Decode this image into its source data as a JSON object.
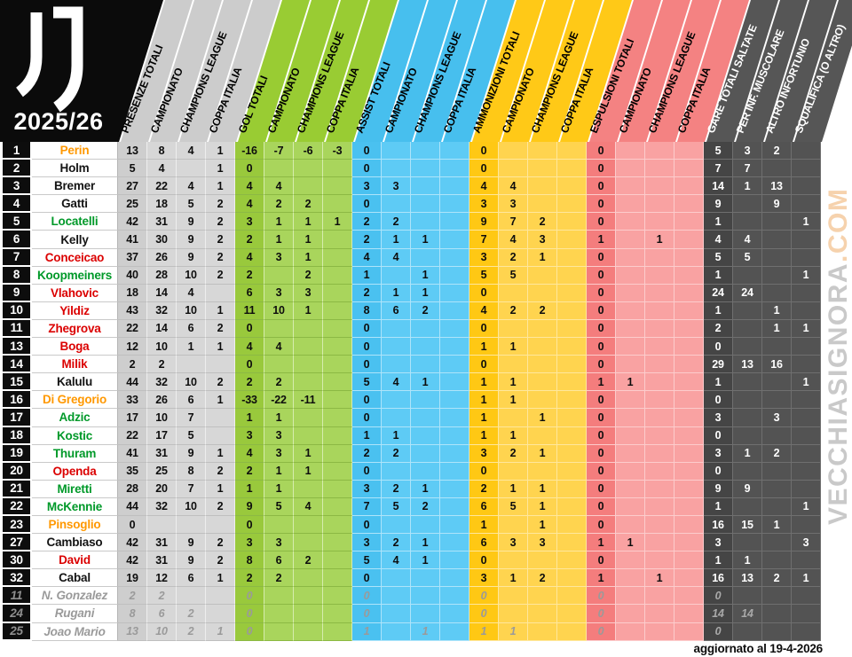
{
  "logo": {
    "season": "2025/26"
  },
  "header": {
    "groups": [
      {
        "id": "presenze",
        "color": "#cccccc",
        "text_color": "#000000",
        "labels": [
          "PRESENZE TOTALI",
          "CAMPIONATO",
          "CHAMPIONS LEAGUE",
          "COPPA ITALIA"
        ]
      },
      {
        "id": "gol",
        "color": "#99cc33",
        "text_color": "#000000",
        "labels": [
          "GOL TOTALI",
          "CAMPIONATO",
          "CHAMPIONS LEAGUE",
          "COPPA ITALIA"
        ]
      },
      {
        "id": "assist",
        "color": "#47bfee",
        "text_color": "#000000",
        "labels": [
          "ASSIST TOTALI",
          "CAMPIONATO",
          "CHAMPIONS LEAGUE",
          "COPPA ITALIA"
        ]
      },
      {
        "id": "ammonizioni",
        "color": "#ffc917",
        "text_color": "#000000",
        "labels": [
          "AMMONIZIONI TOTALI",
          "CAMPIONATO",
          "CHAMPIONS LEAGUE",
          "COPPA ITALIA"
        ]
      },
      {
        "id": "espulsioni",
        "color": "#f48282",
        "text_color": "#000000",
        "labels": [
          "ESPULSIONI TOTALI",
          "CAMPIONATO",
          "CHAMPIONS LEAGUE",
          "COPPA ITALIA"
        ]
      },
      {
        "id": "gare_saltate",
        "color": "#565656",
        "text_color": "#ffffff",
        "labels": [
          "GARE TOTALI SALTATE",
          "PER INF. MUSCOLARE",
          "ALTRO INFORTUNIO",
          "SQUALIFICA (O ALTRO)"
        ]
      }
    ]
  },
  "role_colors": {
    "goalkeeper": "#ff9800",
    "defender": "#141414",
    "midfielder": "#009929",
    "forward": "#db0000",
    "former": "#9a9a9a"
  },
  "rows": [
    {
      "rank": "1",
      "name": "Perin",
      "role": "goalkeeper",
      "values": [
        "13",
        "8",
        "4",
        "1",
        "-16",
        "-7",
        "-6",
        "-3",
        "0",
        "",
        "",
        "",
        "0",
        "",
        "",
        "",
        "0",
        "",
        "",
        "",
        "5",
        "3",
        "2",
        ""
      ]
    },
    {
      "rank": "2",
      "name": "Holm",
      "role": "defender",
      "values": [
        "5",
        "4",
        "",
        "1",
        "0",
        "",
        "",
        "",
        "0",
        "",
        "",
        "",
        "0",
        "",
        "",
        "",
        "0",
        "",
        "",
        "",
        "7",
        "7",
        "",
        ""
      ]
    },
    {
      "rank": "3",
      "name": "Bremer",
      "role": "defender",
      "values": [
        "27",
        "22",
        "4",
        "1",
        "4",
        "4",
        "",
        "",
        "3",
        "3",
        "",
        "",
        "4",
        "4",
        "",
        "",
        "0",
        "",
        "",
        "",
        "14",
        "1",
        "13",
        ""
      ]
    },
    {
      "rank": "4",
      "name": "Gatti",
      "role": "defender",
      "values": [
        "25",
        "18",
        "5",
        "2",
        "4",
        "2",
        "2",
        "",
        "0",
        "",
        "",
        "",
        "3",
        "3",
        "",
        "",
        "0",
        "",
        "",
        "",
        "9",
        "",
        "9",
        ""
      ]
    },
    {
      "rank": "5",
      "name": "Locatelli",
      "role": "midfielder",
      "values": [
        "42",
        "31",
        "9",
        "2",
        "3",
        "1",
        "1",
        "1",
        "2",
        "2",
        "",
        "",
        "9",
        "7",
        "2",
        "",
        "0",
        "",
        "",
        "",
        "1",
        "",
        "",
        "1"
      ]
    },
    {
      "rank": "6",
      "name": "Kelly",
      "role": "defender",
      "values": [
        "41",
        "30",
        "9",
        "2",
        "2",
        "1",
        "1",
        "",
        "2",
        "1",
        "1",
        "",
        "7",
        "4",
        "3",
        "",
        "1",
        "",
        "1",
        "",
        "4",
        "4",
        "",
        ""
      ]
    },
    {
      "rank": "7",
      "name": "Conceicao",
      "role": "forward",
      "values": [
        "37",
        "26",
        "9",
        "2",
        "4",
        "3",
        "1",
        "",
        "4",
        "4",
        "",
        "",
        "3",
        "2",
        "1",
        "",
        "0",
        "",
        "",
        "",
        "5",
        "5",
        "",
        ""
      ]
    },
    {
      "rank": "8",
      "name": "Koopmeiners",
      "role": "midfielder",
      "values": [
        "40",
        "28",
        "10",
        "2",
        "2",
        "",
        "2",
        "",
        "1",
        "",
        "1",
        "",
        "5",
        "5",
        "",
        "",
        "0",
        "",
        "",
        "",
        "1",
        "",
        "",
        "1"
      ]
    },
    {
      "rank": "9",
      "name": "Vlahovic",
      "role": "forward",
      "values": [
        "18",
        "14",
        "4",
        "",
        "6",
        "3",
        "3",
        "",
        "2",
        "1",
        "1",
        "",
        "0",
        "",
        "",
        "",
        "0",
        "",
        "",
        "",
        "24",
        "24",
        "",
        ""
      ]
    },
    {
      "rank": "10",
      "name": "Yildiz",
      "role": "forward",
      "values": [
        "43",
        "32",
        "10",
        "1",
        "11",
        "10",
        "1",
        "",
        "8",
        "6",
        "2",
        "",
        "4",
        "2",
        "2",
        "",
        "0",
        "",
        "",
        "",
        "1",
        "",
        "1",
        ""
      ]
    },
    {
      "rank": "11",
      "name": "Zhegrova",
      "role": "forward",
      "values": [
        "22",
        "14",
        "6",
        "2",
        "0",
        "",
        "",
        "",
        "0",
        "",
        "",
        "",
        "0",
        "",
        "",
        "",
        "0",
        "",
        "",
        "",
        "2",
        "",
        "1",
        "1"
      ]
    },
    {
      "rank": "13",
      "name": "Boga",
      "role": "forward",
      "values": [
        "12",
        "10",
        "1",
        "1",
        "4",
        "4",
        "",
        "",
        "0",
        "",
        "",
        "",
        "1",
        "1",
        "",
        "",
        "0",
        "",
        "",
        "",
        "0",
        "",
        "",
        ""
      ]
    },
    {
      "rank": "14",
      "name": "Milik",
      "role": "forward",
      "values": [
        "2",
        "2",
        "",
        "",
        "0",
        "",
        "",
        "",
        "0",
        "",
        "",
        "",
        "0",
        "",
        "",
        "",
        "0",
        "",
        "",
        "",
        "29",
        "13",
        "16",
        ""
      ]
    },
    {
      "rank": "15",
      "name": "Kalulu",
      "role": "defender",
      "values": [
        "44",
        "32",
        "10",
        "2",
        "2",
        "2",
        "",
        "",
        "5",
        "4",
        "1",
        "",
        "1",
        "1",
        "",
        "",
        "1",
        "1",
        "",
        "",
        "1",
        "",
        "",
        "1"
      ]
    },
    {
      "rank": "16",
      "name": "Di Gregorio",
      "role": "goalkeeper",
      "values": [
        "33",
        "26",
        "6",
        "1",
        "-33",
        "-22",
        "-11",
        "",
        "0",
        "",
        "",
        "",
        "1",
        "1",
        "",
        "",
        "0",
        "",
        "",
        "",
        "0",
        "",
        "",
        ""
      ]
    },
    {
      "rank": "17",
      "name": "Adzic",
      "role": "midfielder",
      "values": [
        "17",
        "10",
        "7",
        "",
        "1",
        "1",
        "",
        "",
        "0",
        "",
        "",
        "",
        "1",
        "",
        "1",
        "",
        "0",
        "",
        "",
        "",
        "3",
        "",
        "3",
        ""
      ]
    },
    {
      "rank": "18",
      "name": "Kostic",
      "role": "midfielder",
      "values": [
        "22",
        "17",
        "5",
        "",
        "3",
        "3",
        "",
        "",
        "1",
        "1",
        "",
        "",
        "1",
        "1",
        "",
        "",
        "0",
        "",
        "",
        "",
        "0",
        "",
        "",
        ""
      ]
    },
    {
      "rank": "19",
      "name": "Thuram",
      "role": "midfielder",
      "values": [
        "41",
        "31",
        "9",
        "1",
        "4",
        "3",
        "1",
        "",
        "2",
        "2",
        "",
        "",
        "3",
        "2",
        "1",
        "",
        "0",
        "",
        "",
        "",
        "3",
        "1",
        "2",
        ""
      ]
    },
    {
      "rank": "20",
      "name": "Openda",
      "role": "forward",
      "values": [
        "35",
        "25",
        "8",
        "2",
        "2",
        "1",
        "1",
        "",
        "0",
        "",
        "",
        "",
        "0",
        "",
        "",
        "",
        "0",
        "",
        "",
        "",
        "0",
        "",
        "",
        ""
      ]
    },
    {
      "rank": "21",
      "name": "Miretti",
      "role": "midfielder",
      "values": [
        "28",
        "20",
        "7",
        "1",
        "1",
        "1",
        "",
        "",
        "3",
        "2",
        "1",
        "",
        "2",
        "1",
        "1",
        "",
        "0",
        "",
        "",
        "",
        "9",
        "9",
        "",
        ""
      ]
    },
    {
      "rank": "22",
      "name": "McKennie",
      "role": "midfielder",
      "values": [
        "44",
        "32",
        "10",
        "2",
        "9",
        "5",
        "4",
        "",
        "7",
        "5",
        "2",
        "",
        "6",
        "5",
        "1",
        "",
        "0",
        "",
        "",
        "",
        "1",
        "",
        "",
        "1"
      ]
    },
    {
      "rank": "23",
      "name": "Pinsoglio",
      "role": "goalkeeper",
      "values": [
        "0",
        "",
        "",
        "",
        "0",
        "",
        "",
        "",
        "0",
        "",
        "",
        "",
        "1",
        "",
        "1",
        "",
        "0",
        "",
        "",
        "",
        "16",
        "15",
        "1",
        ""
      ]
    },
    {
      "rank": "27",
      "name": "Cambiaso",
      "role": "defender",
      "values": [
        "42",
        "31",
        "9",
        "2",
        "3",
        "3",
        "",
        "",
        "3",
        "2",
        "1",
        "",
        "6",
        "3",
        "3",
        "",
        "1",
        "1",
        "",
        "",
        "3",
        "",
        "",
        "3"
      ]
    },
    {
      "rank": "30",
      "name": "David",
      "role": "forward",
      "values": [
        "42",
        "31",
        "9",
        "2",
        "8",
        "6",
        "2",
        "",
        "5",
        "4",
        "1",
        "",
        "0",
        "",
        "",
        "",
        "0",
        "",
        "",
        "",
        "1",
        "1",
        "",
        ""
      ]
    },
    {
      "rank": "32",
      "name": "Cabal",
      "role": "defender",
      "values": [
        "19",
        "12",
        "6",
        "1",
        "2",
        "2",
        "",
        "",
        "0",
        "",
        "",
        "",
        "3",
        "1",
        "2",
        "",
        "1",
        "",
        "1",
        "",
        "16",
        "13",
        "2",
        "1"
      ]
    },
    {
      "rank": "11",
      "name": "N. Gonzalez",
      "role": "former",
      "values": [
        "2",
        "2",
        "",
        "",
        "0",
        "",
        "",
        "",
        "0",
        "",
        "",
        "",
        "0",
        "",
        "",
        "",
        "0",
        "",
        "",
        "",
        "0",
        "",
        "",
        ""
      ]
    },
    {
      "rank": "24",
      "name": "Rugani",
      "role": "former",
      "values": [
        "8",
        "6",
        "2",
        "",
        "0",
        "",
        "",
        "",
        "0",
        "",
        "",
        "",
        "0",
        "",
        "",
        "",
        "0",
        "",
        "",
        "",
        "14",
        "14",
        "",
        ""
      ]
    },
    {
      "rank": "25",
      "name": "Joao Mario",
      "role": "former",
      "values": [
        "13",
        "10",
        "2",
        "1",
        "0",
        "",
        "",
        "",
        "1",
        "",
        "1",
        "",
        "1",
        "1",
        "",
        "",
        "0",
        "",
        "",
        "",
        "0",
        "",
        "",
        ""
      ]
    }
  ],
  "footer": {
    "updated": "aggiornato al 19-4-2026"
  },
  "watermark": {
    "main": "VECCHIASIGNORA",
    "tld": ".COM"
  }
}
